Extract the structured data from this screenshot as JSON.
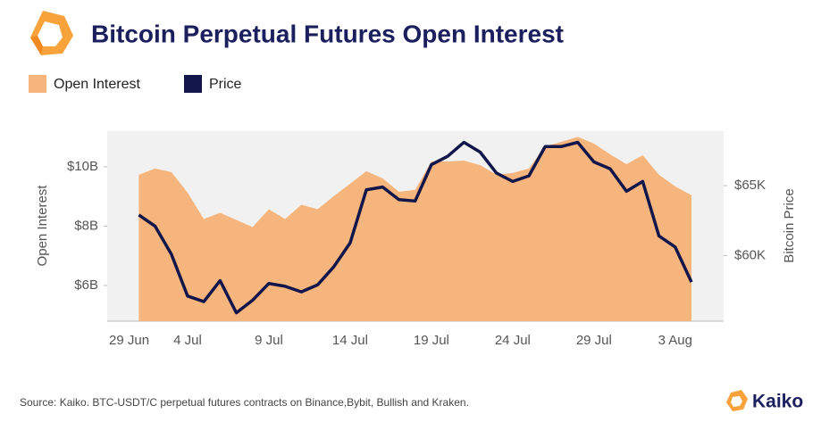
{
  "chart_data": {
    "type": "area+line",
    "title": "Bitcoin Perpetual Futures Open Interest",
    "y_label": "Open Interest",
    "y2_label": "Bitcoin Price",
    "source": "Source: Kaiko. BTC-USDT/C perpetual futures contracts on Binance,Bybit, Bullish and Kraken.",
    "brand": "Kaiko",
    "categories": [
      "29 Jun",
      null,
      null,
      null,
      null,
      "4 Jul",
      null,
      null,
      null,
      null,
      "9 Jul",
      null,
      null,
      null,
      null,
      "14 Jul",
      null,
      null,
      null,
      null,
      "19 Jul",
      null,
      null,
      null,
      null,
      "24 Jul",
      null,
      null,
      null,
      null,
      "29 Jul",
      null,
      null,
      null,
      null,
      "3 Aug",
      null
    ],
    "series": [
      {
        "name": "Open Interest",
        "type": "area",
        "color": "#f6b57c",
        "values": [
          null,
          null,
          9.73,
          9.94,
          9.82,
          9.13,
          8.24,
          8.45,
          8.21,
          7.97,
          8.57,
          8.24,
          8.72,
          8.57,
          9.01,
          9.43,
          9.85,
          9.61,
          9.16,
          9.22,
          10.18,
          10.18,
          10.21,
          10.06,
          9.73,
          9.79,
          9.94,
          10.69,
          10.84,
          11.01,
          10.78,
          10.42,
          10.09,
          10.39,
          9.73,
          9.34,
          9.04
        ]
      },
      {
        "name": "Price",
        "type": "line",
        "axis": "y2",
        "color": "#13164a",
        "values": [
          null,
          null,
          62.9,
          62.1,
          60.1,
          57.1,
          56.7,
          58.2,
          55.9,
          56.8,
          58.0,
          57.8,
          57.4,
          57.9,
          59.2,
          60.9,
          64.7,
          64.9,
          64.0,
          63.9,
          66.5,
          67.1,
          68.1,
          67.4,
          65.9,
          65.3,
          65.7,
          67.8,
          67.8,
          68.1,
          66.7,
          66.2,
          64.6,
          65.3,
          61.4,
          60.6,
          58.1
        ]
      }
    ],
    "ylim": [
      4.8,
      11.2
    ],
    "yticks": [
      {
        "value": 6,
        "label": "$6B"
      },
      {
        "value": 8,
        "label": "$8B"
      },
      {
        "value": 10,
        "label": "$10B"
      }
    ],
    "y2lim": [
      55.3,
      68.9
    ],
    "y2ticks": [
      {
        "value": 60,
        "label": "$60K"
      },
      {
        "value": 65,
        "label": "$65K"
      }
    ],
    "legend": "top-left"
  }
}
